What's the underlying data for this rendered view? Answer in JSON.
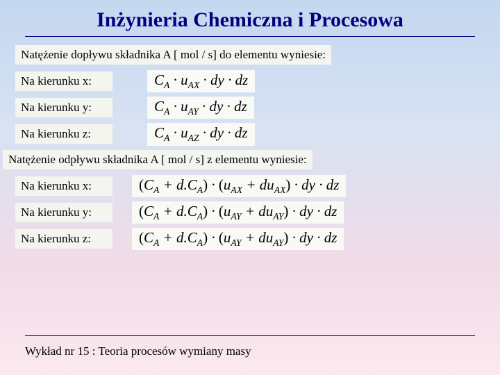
{
  "title": "Inżynieria Chemiczna i Procesowa",
  "inflow_heading": "Natężenie dopływu składnika A [ mol / s] do elementu wyniesie:",
  "outflow_heading": "Natężenie odpływu składnika A [ mol / s] z elementu wyniesie:",
  "labels": {
    "x": "Na kierunku x:",
    "y": "Na kierunku y:",
    "z": "Na kierunku z:"
  },
  "inflow": {
    "x": "C<span class='sub'>A</span> · u<span class='sub'>AX</span> · dy · dz",
    "y": "C<span class='sub'>A</span> · u<span class='sub'>AY</span> · dy · dz",
    "z": "C<span class='sub'>A</span> · u<span class='sub'>AZ</span> · dy · dz"
  },
  "outflow": {
    "x": "<span class='upr'>(</span>C<span class='sub'>A</span> + d.C<span class='sub'>A</span><span class='upr'>)</span> · <span class='upr'>(</span>u<span class='sub'>AX</span> + du<span class='sub'>AX</span><span class='upr'>)</span> · dy · dz",
    "y": "<span class='upr'>(</span>C<span class='sub'>A</span> + d.C<span class='sub'>A</span><span class='upr'>)</span> · <span class='upr'>(</span>u<span class='sub'>AY</span> + du<span class='sub'>AY</span><span class='upr'>)</span> · dy · dz",
    "z": "<span class='upr'>(</span>C<span class='sub'>A</span> + d.C<span class='sub'>A</span><span class='upr'>)</span> · <span class='upr'>(</span>u<span class='sub'>AY</span> + du<span class='sub'>AY</span><span class='upr'>)</span> · dy · dz"
  },
  "footer": "Wykład nr 15  : Teoria procesów wymiany masy"
}
